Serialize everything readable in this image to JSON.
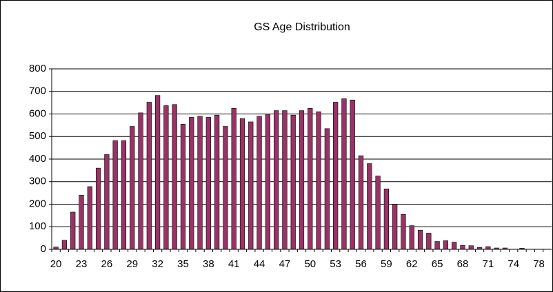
{
  "chart_data": {
    "type": "bar",
    "title": "GS Age Distribution",
    "categories": [
      "20",
      null,
      null,
      "23",
      null,
      null,
      "26",
      null,
      null,
      "29",
      null,
      null,
      "32",
      null,
      null,
      "35",
      null,
      null,
      "38",
      null,
      null,
      "41",
      null,
      null,
      "44",
      null,
      null,
      "47",
      null,
      null,
      "50",
      null,
      null,
      "53",
      null,
      null,
      "56",
      null,
      null,
      "59",
      null,
      null,
      "62",
      null,
      null,
      "65",
      null,
      null,
      "68",
      null,
      null,
      "71",
      null,
      null,
      "74",
      null,
      null,
      "78",
      null
    ],
    "values": [
      10,
      40,
      165,
      240,
      278,
      360,
      420,
      482,
      482,
      545,
      605,
      652,
      682,
      637,
      642,
      555,
      585,
      590,
      585,
      595,
      545,
      625,
      580,
      565,
      590,
      600,
      615,
      615,
      595,
      615,
      625,
      610,
      535,
      652,
      668,
      662,
      415,
      380,
      325,
      268,
      200,
      155,
      105,
      85,
      72,
      35,
      38,
      32,
      18,
      16,
      8,
      12,
      6,
      6,
      0,
      5,
      0,
      0,
      0
    ],
    "color": "#993366",
    "ylim": [
      0,
      800
    ],
    "yticks": [
      0,
      100,
      200,
      300,
      400,
      500,
      600,
      700,
      800
    ],
    "grid": true
  }
}
